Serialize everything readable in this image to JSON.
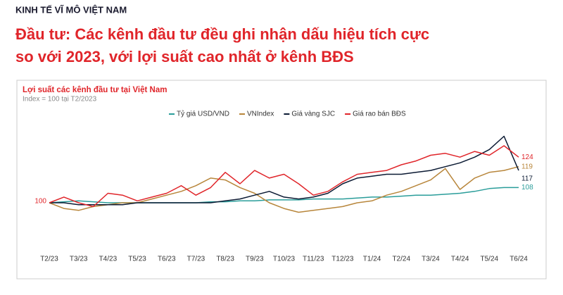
{
  "header": {
    "kicker": "KINH TẾ VĨ MÔ VIỆT NAM",
    "title": [
      "Đầu tư: Các kênh đầu tư đều ghi nhận dấu hiệu tích cực",
      "so với 2023, với lợi suất cao nhất ở kênh BĐS"
    ]
  },
  "chart_data": {
    "type": "line",
    "title": "Lợi suất các kênh đầu tư tại Việt Nam",
    "subtitle": "Index = 100 tại T2/2023",
    "categories": [
      "T2/23",
      null,
      "T3/23",
      null,
      "T4/23",
      null,
      "T5/23",
      null,
      "T6/23",
      null,
      "T7/23",
      null,
      "T8/23",
      null,
      "T9/23",
      null,
      "T10/23",
      null,
      "T11/23",
      null,
      "T12/23",
      null,
      "T1/24",
      null,
      "T2/24",
      null,
      "T3/24",
      null,
      "T4/24",
      null,
      "T5/24",
      null,
      "T6/24"
    ],
    "ylim": [
      85,
      140
    ],
    "legend": "top",
    "series": [
      {
        "name": "Tỷ giá USD/VND",
        "color": "#2a9d9a",
        "values": [
          100,
          100.5,
          101,
          100.5,
          100,
          100,
          100,
          100,
          100,
          100,
          100,
          100.5,
          100.5,
          101,
          101,
          101.5,
          101.5,
          101.5,
          102,
          102,
          102,
          102.5,
          103,
          103,
          103.5,
          104,
          104,
          104.5,
          105,
          106,
          107.5,
          108,
          108
        ]
      },
      {
        "name": "VNIndex",
        "color": "#b8863b",
        "values": [
          100,
          97,
          96,
          98,
          99,
          100,
          100,
          102,
          104,
          106,
          109,
          113,
          112,
          108,
          105,
          100,
          97,
          95,
          96,
          97,
          98,
          100,
          101,
          104,
          106,
          109,
          112,
          118,
          107,
          113,
          116,
          117,
          119
        ]
      },
      {
        "name": "Giá vàng SJC",
        "color": "#0b1a33",
        "values": [
          100,
          100,
          99,
          99,
          99,
          99,
          100,
          100,
          100,
          100,
          100,
          100,
          101,
          102,
          104,
          106,
          103,
          102,
          103,
          105,
          110,
          113,
          114,
          115,
          115,
          116,
          117,
          119,
          121,
          124,
          128,
          135,
          117
        ]
      },
      {
        "name": "Giá rao bán BĐS",
        "color": "#e0252a",
        "values": [
          100,
          103,
          100,
          98,
          105,
          104,
          101,
          103,
          105,
          109,
          104,
          108,
          116,
          110,
          117,
          113,
          115,
          110,
          104,
          106,
          111,
          115,
          116,
          117,
          120,
          122,
          125,
          126,
          124,
          127,
          125,
          130,
          124
        ]
      }
    ]
  }
}
